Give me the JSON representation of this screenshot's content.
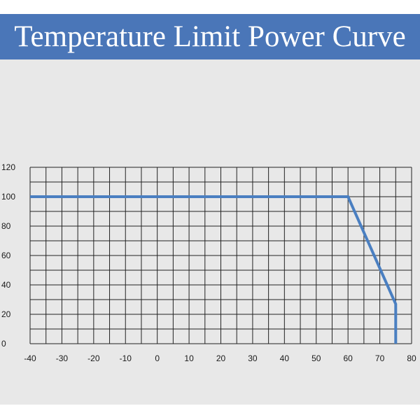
{
  "header": {
    "title": "Temperature Limit Power Curve",
    "background_color": "#4a76b8",
    "text_color": "#ffffff"
  },
  "panel": {
    "background_color": "#e8e8e8"
  },
  "chart_data": {
    "type": "line",
    "title": "Temperature Limit Power Curve",
    "xlabel": "",
    "ylabel": "",
    "xlim": [
      -40,
      80
    ],
    "ylim": [
      0,
      120
    ],
    "x_ticks": [
      -40,
      -30,
      -20,
      -10,
      0,
      10,
      20,
      30,
      40,
      50,
      60,
      70,
      80
    ],
    "y_ticks": [
      0,
      20,
      40,
      60,
      80,
      100,
      120
    ],
    "x_tick_labels": [
      "-40",
      "-30",
      "-20",
      "-10",
      "0",
      "10",
      "20",
      "30",
      "40",
      "50",
      "60",
      "70",
      "80"
    ],
    "y_tick_labels": [
      "0",
      "20",
      "40",
      "60",
      "80",
      "100",
      "120"
    ],
    "grid": true,
    "grid_x_step": 5,
    "grid_y_step": 10,
    "line_color": "#4a7fc1",
    "series": [
      {
        "x": [
          -40,
          60,
          75,
          75
        ],
        "y": [
          100,
          100,
          27,
          0
        ]
      }
    ]
  }
}
